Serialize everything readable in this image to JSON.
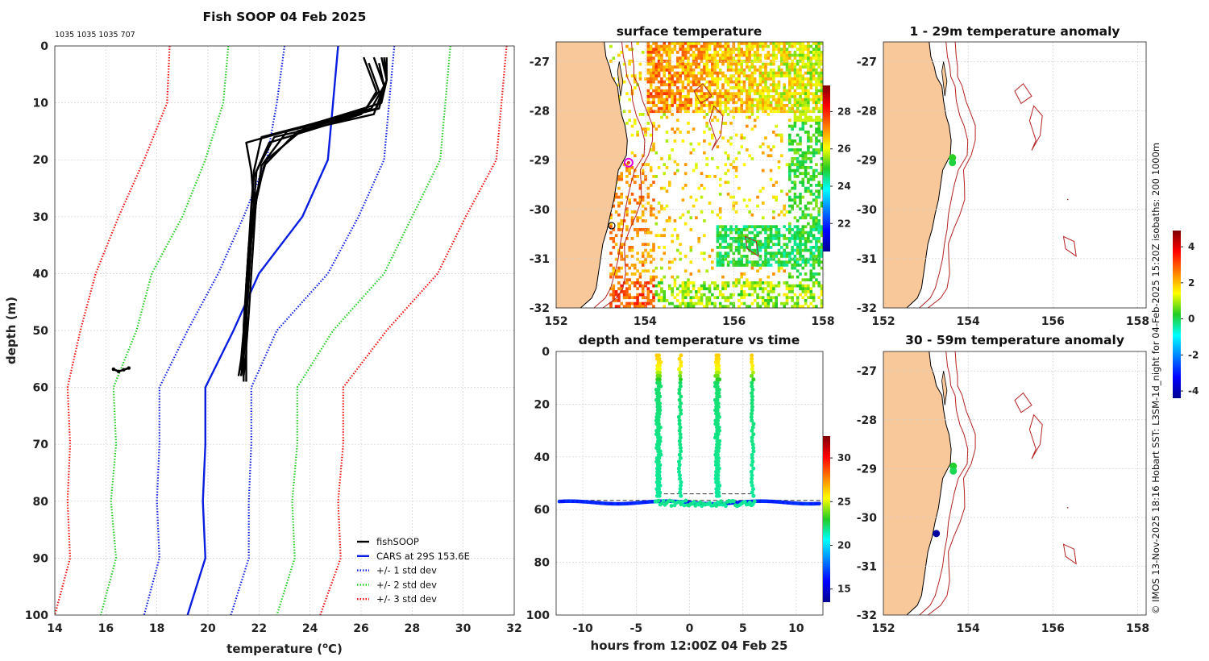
{
  "main_title": "Fish SOOP 04 Feb 2025",
  "counts_text": "1035 1035 1035 707",
  "side_text": "© IMOS 13-Nov-2025 18:16 Hobart SST: L3SM-1d_night for 04-Feb-2025 15:20Z isobaths: 200  1000m",
  "chart_data": [
    {
      "id": "profile",
      "type": "line",
      "title": "",
      "xlabel": "temperature (°C)",
      "xlabel_main": "temperature (",
      "xlabel_sup": "o",
      "xlabel_end": "C)",
      "ylabel": "depth (m)",
      "xlim": [
        14,
        32
      ],
      "ylim": [
        0,
        100
      ],
      "y_reversed": true,
      "xticks": [
        "14",
        "16",
        "18",
        "20",
        "22",
        "24",
        "26",
        "28",
        "30",
        "32"
      ],
      "yticks": [
        "0",
        "10",
        "20",
        "30",
        "40",
        "50",
        "60",
        "70",
        "80",
        "90",
        "100"
      ],
      "legend": [
        {
          "label": "fishSOOP",
          "color": "#000000",
          "style": "solid"
        },
        {
          "label": "CARS at 29S 153.6E",
          "color": "#0a1ee0",
          "style": "solid"
        },
        {
          "label": "+/- 1 std dev",
          "color": "#0a1ee0",
          "style": "dotted"
        },
        {
          "label": "+/- 2 std dev",
          "color": "#22cc22",
          "style": "dotted"
        },
        {
          "label": "+/- 3 std dev",
          "color": "#ee1111",
          "style": "dotted"
        }
      ],
      "depth": [
        0,
        10,
        20,
        30,
        40,
        50,
        60,
        70,
        80,
        90,
        100
      ],
      "cars_mean": [
        25.1,
        24.9,
        24.7,
        23.7,
        22.0,
        21.0,
        19.9,
        19.9,
        19.8,
        19.9,
        19.2
      ],
      "std1_low": [
        23.0,
        22.7,
        22.3,
        21.4,
        20.4,
        19.2,
        18.1,
        18.1,
        18.0,
        18.1,
        17.5
      ],
      "std1_high": [
        27.3,
        27.1,
        26.9,
        25.9,
        24.7,
        22.7,
        21.7,
        21.7,
        21.6,
        21.6,
        20.9
      ],
      "std2_low": [
        20.8,
        20.6,
        19.9,
        19.0,
        17.8,
        17.2,
        16.3,
        16.4,
        16.2,
        16.4,
        15.8
      ],
      "std2_high": [
        29.5,
        29.3,
        29.1,
        28.0,
        26.9,
        24.9,
        23.5,
        23.5,
        23.3,
        23.4,
        22.7
      ],
      "std3_low": [
        18.5,
        18.4,
        17.5,
        16.5,
        15.6,
        15.0,
        14.5,
        14.6,
        14.5,
        14.6,
        14.0
      ],
      "std3_high": [
        31.7,
        31.5,
        31.3,
        30.1,
        29.0,
        27.0,
        25.3,
        25.3,
        25.1,
        25.2,
        24.4
      ],
      "fishsoop_casts": [
        {
          "t": [
            26.1,
            26.6,
            26.2,
            21.5,
            21.7,
            21.8,
            21.6,
            21.5,
            21.4,
            21.4,
            21.3
          ],
          "d": [
            2,
            8,
            11,
            17,
            22,
            28,
            35,
            42,
            49,
            54,
            57
          ]
        },
        {
          "t": [
            26.5,
            26.9,
            26.4,
            22.1,
            21.8,
            21.7,
            21.6,
            21.5,
            21.5,
            21.4,
            21.3
          ],
          "d": [
            2,
            7,
            11,
            16,
            22,
            28,
            35,
            42,
            49,
            54,
            58
          ]
        },
        {
          "t": [
            27.0,
            27.0,
            26.7,
            23.1,
            22.1,
            21.9,
            21.7,
            21.6,
            21.5,
            21.5,
            21.4
          ],
          "d": [
            2,
            6,
            11,
            15,
            21,
            27,
            34,
            41,
            48,
            54,
            58
          ]
        },
        {
          "t": [
            26.7,
            26.9,
            26.5,
            22.6,
            21.9,
            21.8,
            21.6,
            21.5,
            21.5,
            21.4,
            21.3
          ],
          "d": [
            3,
            7,
            12,
            16,
            22,
            28,
            35,
            42,
            49,
            55,
            58
          ]
        },
        {
          "t": [
            26.8,
            27.0,
            26.8,
            23.9,
            22.3,
            21.9,
            21.8,
            21.7,
            21.6,
            21.5,
            21.5
          ],
          "d": [
            2,
            6,
            10,
            14,
            20,
            26,
            33,
            40,
            47,
            53,
            59
          ]
        },
        {
          "t": [
            26.3,
            26.7,
            26.0,
            22.4,
            21.8,
            21.7,
            21.6,
            21.5,
            21.4,
            21.3,
            21.2
          ],
          "d": [
            3,
            8,
            12,
            17,
            23,
            29,
            36,
            43,
            50,
            55,
            58
          ]
        },
        {
          "t": [
            26.9,
            27.0,
            26.6,
            23.5,
            22.2,
            21.9,
            21.7,
            21.6,
            21.5,
            21.4,
            21.4
          ],
          "d": [
            2,
            6,
            11,
            15,
            21,
            27,
            34,
            41,
            48,
            53,
            59
          ]
        }
      ],
      "outlier_points": {
        "t": [
          16.3,
          16.5,
          16.7,
          16.9
        ],
        "d": [
          56.8,
          57.2,
          56.9,
          56.6
        ]
      }
    },
    {
      "id": "sst",
      "type": "heatmap",
      "title": "surface temperature",
      "xlim": [
        152,
        158
      ],
      "ylim": [
        -32,
        -26.6
      ],
      "xticks": [
        "152",
        "154",
        "156",
        "158"
      ],
      "yticks": [
        "-27",
        "-28",
        "-29",
        "-30",
        "-31",
        "-32"
      ],
      "colorbar": {
        "range": [
          20.5,
          29.4
        ],
        "ticks": [
          "22",
          "24",
          "26",
          "28"
        ]
      },
      "marker": {
        "lon": 153.63,
        "lat": -29.05
      }
    },
    {
      "id": "timeseries",
      "type": "scatter",
      "title": "depth and temperature vs time",
      "xlabel": "hours from 12:00Z 04 Feb 25",
      "xlim": [
        -12.5,
        12.5
      ],
      "ylim": [
        0,
        100
      ],
      "y_reversed": true,
      "xticks": [
        "-10",
        "-5",
        "0",
        "5",
        "10"
      ],
      "yticks": [
        "0",
        "20",
        "40",
        "60",
        "80",
        "100"
      ],
      "colorbar": {
        "range": [
          13.5,
          32.5
        ],
        "ticks": [
          "15",
          "20",
          "25",
          "30"
        ]
      },
      "casts_hours": [
        -3.0,
        -0.9,
        2.5,
        5.9
      ],
      "bottom_depth_m": 57.3,
      "cast_turn_depth_m": 54,
      "dashed_line_depth_m": 56.5
    },
    {
      "id": "anom1",
      "type": "scatter",
      "title": "1 - 29m temperature anomaly",
      "xlim": [
        152,
        158.2
      ],
      "ylim": [
        -32,
        -26.6
      ],
      "xticks": [
        "152",
        "154",
        "156",
        "158"
      ],
      "yticks": [
        "-27",
        "-28",
        "-29",
        "-30",
        "-31",
        "-32"
      ],
      "points": [
        {
          "lon": 153.63,
          "lat": -28.95,
          "anom": 0.3
        },
        {
          "lon": 153.63,
          "lat": -29.05,
          "anom": 0.1
        }
      ]
    },
    {
      "id": "anom2",
      "type": "scatter",
      "title": "30 - 59m temperature anomaly",
      "xlim": [
        152,
        158.2
      ],
      "ylim": [
        -32,
        -26.6
      ],
      "xticks": [
        "152",
        "154",
        "156",
        "158"
      ],
      "yticks": [
        "-27",
        "-28",
        "-29",
        "-30",
        "-31",
        "-32"
      ],
      "colorbar": {
        "range": [
          -4.4,
          4.9
        ],
        "ticks": [
          "-4",
          "-2",
          "0",
          "2",
          "4"
        ]
      },
      "points": [
        {
          "lon": 153.65,
          "lat": -28.95,
          "anom": 0.2
        },
        {
          "lon": 153.65,
          "lat": -29.05,
          "anom": 0.0
        },
        {
          "lon": 153.25,
          "lat": -30.33,
          "anom": -4.2
        }
      ]
    }
  ]
}
